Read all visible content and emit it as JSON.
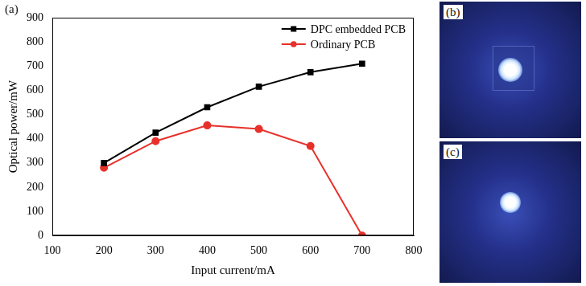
{
  "chart_data": {
    "type": "line",
    "panel": "(a)",
    "x_label": "Input current/mA",
    "y_label": "Optical power/mW",
    "x": [
      200,
      300,
      400,
      500,
      600,
      700
    ],
    "series": [
      {
        "name": "DPC embedded PCB",
        "color": "#000000",
        "marker": "square",
        "values": [
          300,
          425,
          530,
          615,
          675,
          710
        ]
      },
      {
        "name": "Ordinary PCB",
        "color": "#e8302a",
        "marker": "circle",
        "values": [
          280,
          390,
          455,
          440,
          370,
          0
        ]
      }
    ],
    "xlim": [
      100,
      800
    ],
    "xticks": [
      100,
      200,
      300,
      400,
      500,
      600,
      700,
      800
    ],
    "ylim": [
      0,
      900
    ],
    "yticks": [
      0,
      100,
      200,
      300,
      400,
      500,
      600,
      700,
      800,
      900
    ],
    "grid": false,
    "legend": "upper right"
  },
  "images": [
    {
      "panel": "(b)"
    },
    {
      "panel": "(c)"
    }
  ]
}
